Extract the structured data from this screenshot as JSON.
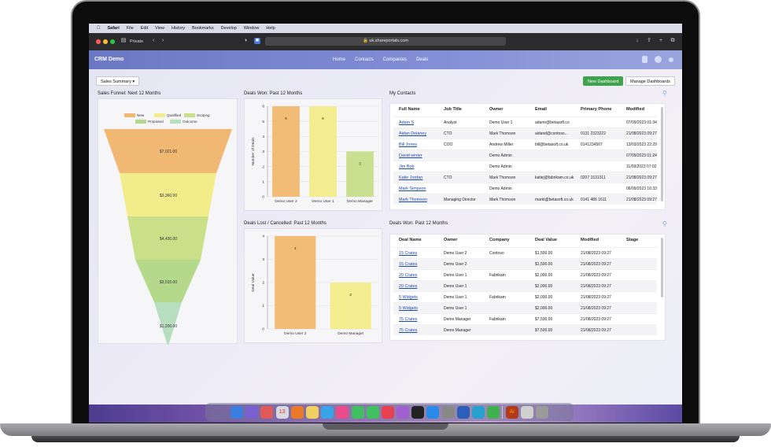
{
  "macos": {
    "menu": [
      "Safari",
      "File",
      "Edit",
      "View",
      "History",
      "Bookmarks",
      "Develop",
      "Window",
      "Help"
    ]
  },
  "safari": {
    "private_label": "Private",
    "url": "uk.shareportals.com"
  },
  "app": {
    "brand": "CRM Demo",
    "nav": [
      "Home",
      "Contacts",
      "Companies",
      "Deals"
    ]
  },
  "toolbar": {
    "dropdown": "Sales Summary",
    "new_dashboard": "New Dashboard",
    "manage": "Manage Dashboards"
  },
  "funnel": {
    "title": "Sales Funnel: Next 12 Months",
    "legend": [
      "New",
      "Qualified",
      "Scoping",
      "Proposed",
      "Outcome"
    ],
    "colors": {
      "new": "#f0b872",
      "qualified": "#f2ec8a",
      "scoping": "#c9df88",
      "proposed": "#b4d98b",
      "outcome": "#b8dec0"
    },
    "stage_values": [
      "$7,021.00",
      "$3,360.00",
      "$4,430.00",
      "$3,533.00",
      "$1,200.00"
    ]
  },
  "chart_data": [
    {
      "type": "bar",
      "title": "Deals Won: Past 12 Months",
      "categories": [
        "Demo User 2",
        "Demo User 1",
        "Demo Manager"
      ],
      "values": [
        6,
        6,
        3
      ],
      "ylabel": "Number of Deals",
      "ylim": [
        0,
        6
      ],
      "yticks": [
        "6",
        "5",
        "4",
        "3",
        "2",
        "1",
        "0"
      ],
      "colors": [
        "#f2bc77",
        "#f3ed90",
        "#c8e08f"
      ]
    },
    {
      "type": "bar",
      "title": "Deals Lost / Cancelled: Past 12 Months",
      "categories": [
        "Demo User 2",
        "Demo Manager"
      ],
      "values": [
        4,
        2
      ],
      "ylabel": "Deal Value",
      "ylim": [
        0,
        4
      ],
      "yticks": [
        "4",
        "3",
        "2",
        "1",
        "0"
      ],
      "colors": [
        "#f2bc77",
        "#f3ed90"
      ]
    }
  ],
  "contacts": {
    "title": "My Contacts",
    "headers": [
      "Full Name",
      "Job Title",
      "Owner",
      "Email",
      "Primary Phone",
      "Modified"
    ],
    "rows": [
      [
        "Adam S",
        "Analyst",
        "Demo User 1",
        "adamr@betasoft.co",
        "",
        "07/09/2023 01:34"
      ],
      [
        "Aidan Delaney",
        "CTO",
        "Mark Thomson",
        "aidand@contoso...",
        "0131 2323222",
        "21/08/2023 09:27"
      ],
      [
        "Bill Jones",
        "COO",
        "Andrew Miller",
        "bill@betasoft.co.uk",
        "0141234567",
        "13/03/2023 22:29"
      ],
      [
        "David winter",
        "",
        "Demo Admin",
        "",
        "",
        "07/09/2023 01:24"
      ],
      [
        "Jim Bob",
        "",
        "Demo Admin",
        "",
        "",
        "11/09/2023 07:02"
      ],
      [
        "Katie Jordan",
        "CTO",
        "Mark Thomson",
        "katiej@fabrikam.co.uk",
        "0207 1531311",
        "21/08/2023 09:27"
      ],
      [
        "Mark Simpson",
        "",
        "Demo Admin",
        "",
        "",
        "06/09/2023 16:33"
      ],
      [
        "Mark Thomson",
        "Managing Director",
        "Mark Thomson",
        "markt@betasoft.co.uk",
        "0141 486 1611",
        "21/08/2023 09:27"
      ]
    ]
  },
  "deals": {
    "title": "Deals Won: Past 12 Months",
    "headers": [
      "Deal Name",
      "Owner",
      "Company",
      "Deal Value",
      "Modified",
      "Stage"
    ],
    "rows": [
      [
        "15 Crates",
        "Demo User 2",
        "Contoso",
        "$1,500.00",
        "21/08/2023 09:27",
        ""
      ],
      [
        "15 Crates",
        "Demo User 2",
        "",
        "$1,500.00",
        "21/08/2023 09:27",
        ""
      ],
      [
        "20 Crates",
        "Demo User 1",
        "Fabrikam",
        "$2,000.00",
        "21/08/2023 09:27",
        ""
      ],
      [
        "20 Crates",
        "Demo User 1",
        "",
        "$2,000.00",
        "21/08/2023 09:27",
        ""
      ],
      [
        "5 Widgets",
        "Demo User 1",
        "Fabrikam",
        "$2,000.00",
        "21/08/2023 09:27",
        ""
      ],
      [
        "5 Widgets",
        "Demo User 1",
        "",
        "$2,000.00",
        "21/08/2023 09:27",
        ""
      ],
      [
        "75 Crates",
        "Demo Manager",
        "Fabrikam",
        "$7,500.00",
        "21/08/2023 09:27",
        ""
      ],
      [
        "75 Crates",
        "Demo Manager",
        "",
        "$7,500.00",
        "21/08/2023 09:27",
        ""
      ]
    ]
  },
  "dock": {
    "colors": [
      "#3b7de0",
      "#7a5fd0",
      "#e05a5a",
      "#d8d8e0",
      "#e87a2a",
      "#f0d060",
      "#3aa4e8",
      "#e84a8a",
      "#40c060",
      "#40c060",
      "#e84050",
      "#a060d0",
      "#222",
      "#2a8ae8",
      "#888",
      "#2b5fb8",
      "#2aa0d0",
      "#40b050",
      "#b03a1a",
      "#d0d0d0",
      "#9a9a9a"
    ],
    "calendar_day": "13",
    "ai_label": "Ai"
  }
}
